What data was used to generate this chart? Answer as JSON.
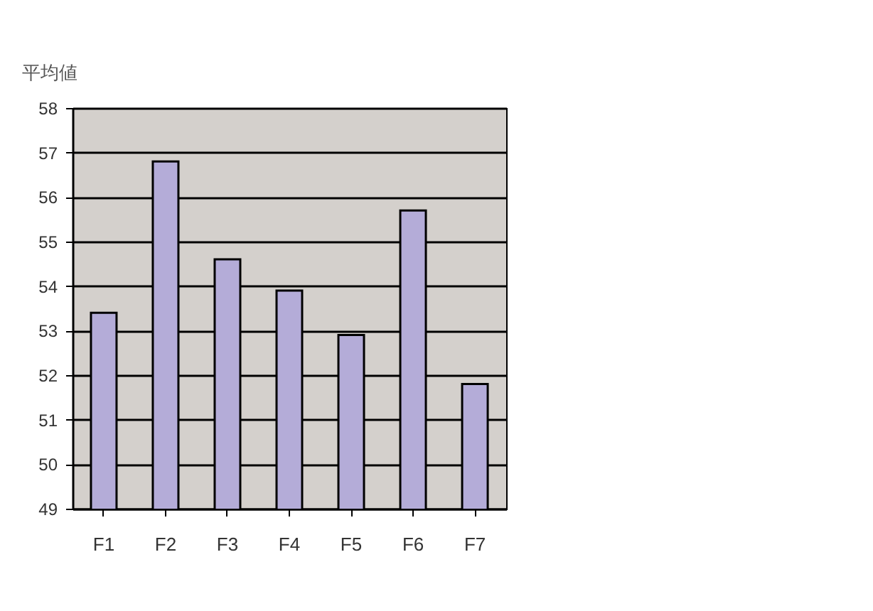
{
  "chart_data": {
    "type": "bar",
    "ylabel": "平均値",
    "categories": [
      "F1",
      "F2",
      "F3",
      "F4",
      "F5",
      "F6",
      "F7"
    ],
    "values": [
      53.4,
      56.8,
      54.6,
      53.9,
      52.9,
      55.7,
      51.8
    ],
    "color": "#b4acd8",
    "ylim": [
      49,
      58
    ],
    "yticks": [
      49,
      50,
      51,
      52,
      53,
      54,
      55,
      56,
      57,
      58
    ],
    "grid": "y"
  }
}
